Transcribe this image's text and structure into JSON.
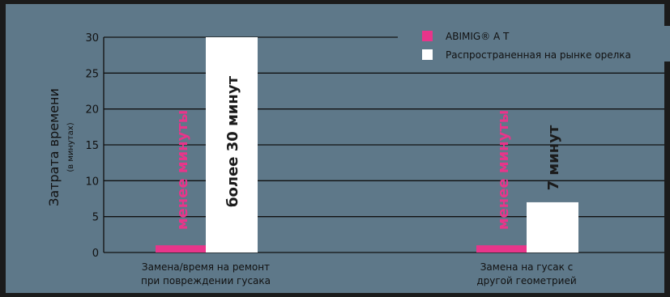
{
  "chart_data": {
    "type": "bar",
    "ylabel": "Затрата времени",
    "ylabel_unit": "(в минутах)",
    "ylim": [
      0,
      30
    ],
    "yticks": [
      0,
      5,
      10,
      15,
      20,
      25,
      30
    ],
    "grid": true,
    "legend_position": "top-right",
    "categories": [
      [
        "Замена/время на ремонт",
        "при повреждении гусака"
      ],
      [
        "Замена на гусак с",
        "другой геометрией"
      ]
    ],
    "series": [
      {
        "name": "ABIMIG® A T",
        "color": "#e8358a",
        "values": [
          1,
          1
        ],
        "labels": [
          "менее минуты",
          "менее минуты"
        ]
      },
      {
        "name": "Распространенная на рынке орелка",
        "color": "#ffffff",
        "values": [
          30,
          7
        ],
        "labels": [
          "более 30 минут",
          "7 минут"
        ]
      }
    ]
  }
}
